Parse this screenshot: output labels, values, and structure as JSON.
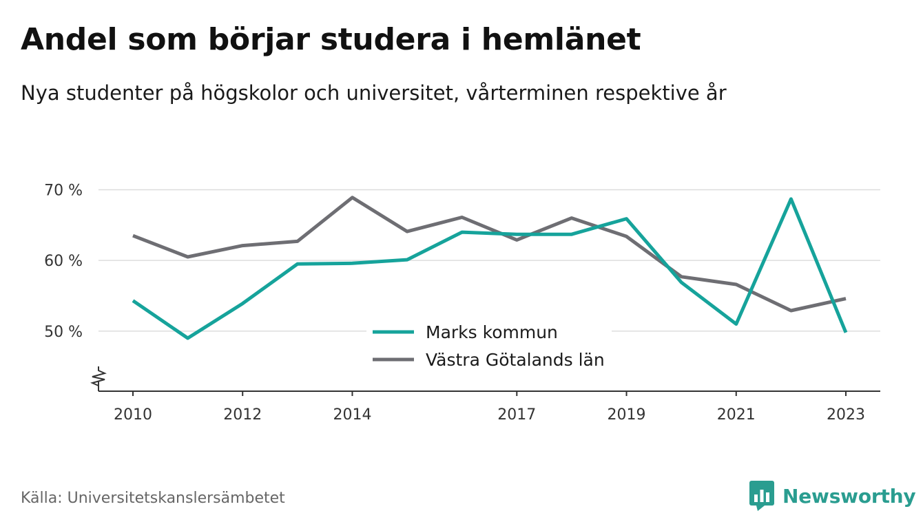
{
  "header": {
    "title": "Andel som börjar studera i hemlänet",
    "subtitle": "Nya studenter på högskolor och universitet, vårterminen respektive år"
  },
  "footer": {
    "source": "Källa: Universitetskanslersämbetet",
    "brand": "Newsworthy"
  },
  "colors": {
    "marks": "#16a39b",
    "vastra": "#6e6e73",
    "grid": "#dddddd",
    "axis": "#333333",
    "brand": "#2a9d90"
  },
  "chart_data": {
    "type": "line",
    "x": [
      2010,
      2011,
      2012,
      2013,
      2014,
      2015,
      2016,
      2017,
      2018,
      2019,
      2020,
      2021,
      2022,
      2023
    ],
    "x_tick_labels": [
      "2010",
      "2012",
      "2014",
      "2017",
      "2019",
      "2021",
      "2023"
    ],
    "y_ticks": [
      50,
      60,
      70
    ],
    "y_tick_labels": [
      "50 %",
      "60 %",
      "70 %"
    ],
    "ylim": [
      41.5,
      72
    ],
    "axis_break": true,
    "grid": true,
    "legend_position": "bottom-center",
    "series": [
      {
        "name": "Marks kommun",
        "values": [
          54.3,
          49.0,
          53.9,
          59.5,
          59.6,
          60.1,
          64.0,
          63.7,
          63.7,
          65.9,
          56.9,
          51.0,
          68.7,
          49.8
        ]
      },
      {
        "name": "Västra Götalands län",
        "values": [
          63.5,
          60.5,
          62.1,
          62.7,
          68.9,
          64.1,
          66.1,
          62.9,
          66.0,
          63.4,
          57.7,
          56.6,
          52.9,
          54.6
        ]
      }
    ]
  }
}
